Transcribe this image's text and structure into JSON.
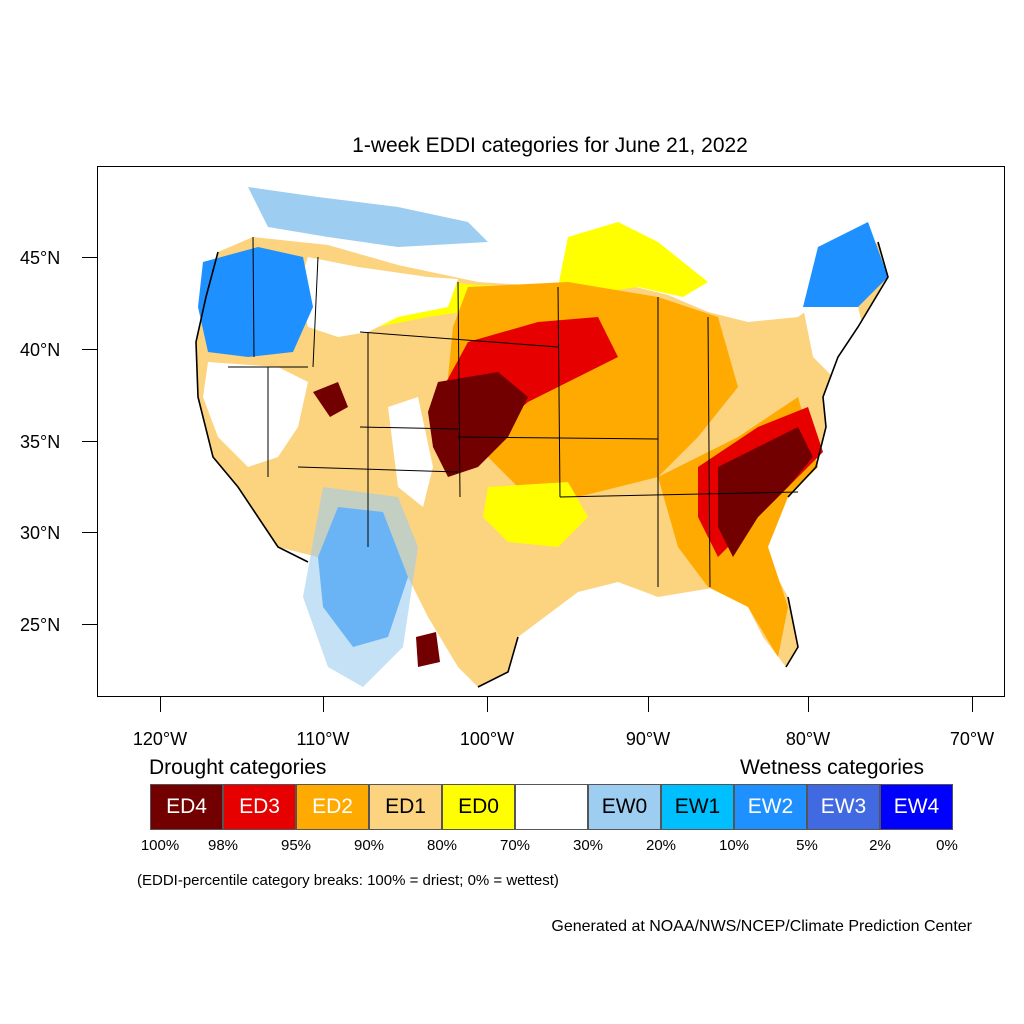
{
  "title": "1-week EDDI categories for June 21, 2022",
  "map": {
    "lat_labels": [
      "45°N",
      "40°N",
      "35°N",
      "30°N",
      "25°N"
    ],
    "lon_labels": [
      "120°W",
      "110°W",
      "100°W",
      "90°W",
      "80°W",
      "70°W"
    ]
  },
  "legend": {
    "drought_heading": "Drought categories",
    "wetness_heading": "Wetness categories",
    "categories": [
      {
        "label": "ED4",
        "color": "#730000",
        "text_color": "#ffffff"
      },
      {
        "label": "ED3",
        "color": "#e60000",
        "text_color": "#ffffff"
      },
      {
        "label": "ED2",
        "color": "#ffaa00",
        "text_color": "#ffffff"
      },
      {
        "label": "ED1",
        "color": "#fcd37f",
        "text_color": "#000000"
      },
      {
        "label": "ED0",
        "color": "#ffff00",
        "text_color": "#000000"
      },
      {
        "label": "",
        "color": "#ffffff",
        "text_color": "#000000"
      },
      {
        "label": "EW0",
        "color": "#9dcdf0",
        "text_color": "#000000"
      },
      {
        "label": "EW1",
        "color": "#00bfff",
        "text_color": "#000000"
      },
      {
        "label": "EW2",
        "color": "#1e90ff",
        "text_color": "#ffffff"
      },
      {
        "label": "EW3",
        "color": "#4169e1",
        "text_color": "#ffffff"
      },
      {
        "label": "EW4",
        "color": "#0000ff",
        "text_color": "#ffffff"
      }
    ],
    "breaks": [
      "100%",
      "98%",
      "95%",
      "90%",
      "80%",
      "70%",
      "30%",
      "20%",
      "10%",
      "5%",
      "2%",
      "0%"
    ]
  },
  "note": "(EDDI-percentile category breaks: 100% = driest; 0% = wettest)",
  "credit": "Generated at NOAA/NWS/NCEP/Climate Prediction Center"
}
